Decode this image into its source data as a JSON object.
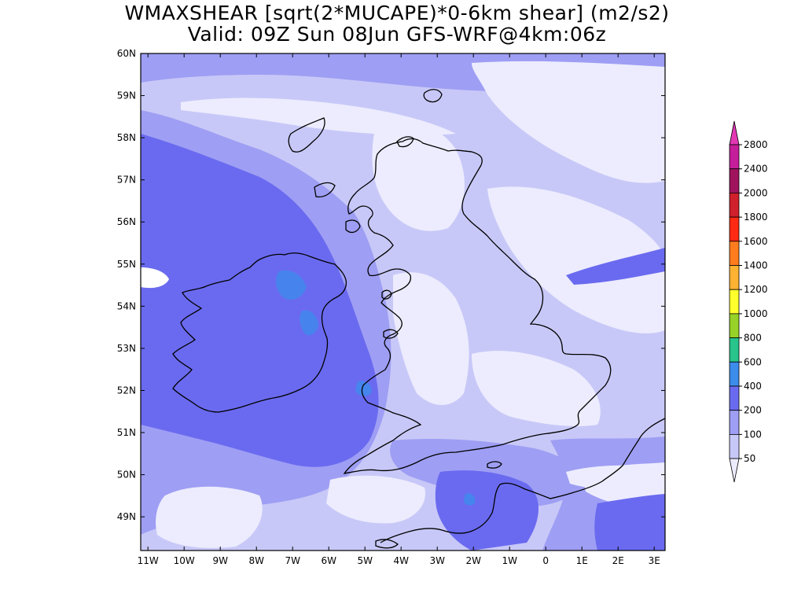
{
  "title": {
    "line1": "WMAXSHEAR [sqrt(2*MUCAPE)*0-6km shear] (m2/s2)",
    "line2": "Valid: 09Z Sun 08Jun GFS-WRF@4km:06z"
  },
  "map": {
    "lat_labels": [
      "60N",
      "59N",
      "58N",
      "57N",
      "56N",
      "55N",
      "54N",
      "53N",
      "52N",
      "51N",
      "50N",
      "49N"
    ],
    "lon_labels": [
      "11W",
      "10W",
      "9W",
      "8W",
      "7W",
      "6W",
      "5W",
      "4W",
      "3W",
      "2W",
      "1W",
      "0",
      "1E",
      "2E",
      "3E"
    ],
    "lat_range": [
      48.2,
      60
    ],
    "lon_range": [
      -11.2,
      3.3
    ]
  },
  "colorbar": {
    "levels": [
      "2800",
      "2400",
      "2000",
      "1800",
      "1600",
      "1400",
      "1200",
      "1000",
      "800",
      "600",
      "400",
      "200",
      "100",
      "50"
    ],
    "colors": {
      "above_2800": "#e238b4",
      "2400-2800": "#c51e9a",
      "2000-2400": "#a0145e",
      "1800-2000": "#d0202c",
      "1600-1800": "#ff2a14",
      "1400-1600": "#ff7c1e",
      "1200-1400": "#ffb232",
      "1000-1200": "#ffff2c",
      "800-1000": "#98d228",
      "600-800": "#28c48c",
      "400-600": "#3c8cec",
      "200-400": "#6a6af0",
      "100-200": "#9e9ef4",
      "50-100": "#c8c8f8",
      "below_50": "#ececfe"
    }
  },
  "land_colors": {
    "coast": "#000000",
    "background": "#ffffff"
  }
}
